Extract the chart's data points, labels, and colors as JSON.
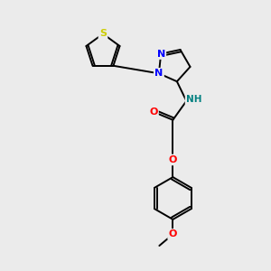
{
  "background_color": "#ebebeb",
  "bond_color": "#000000",
  "atom_colors": {
    "N": "#0000ff",
    "O": "#ff0000",
    "S": "#cccc00",
    "NH": "#008080",
    "C": "#000000"
  },
  "lw": 1.4,
  "font_size": 8.0
}
